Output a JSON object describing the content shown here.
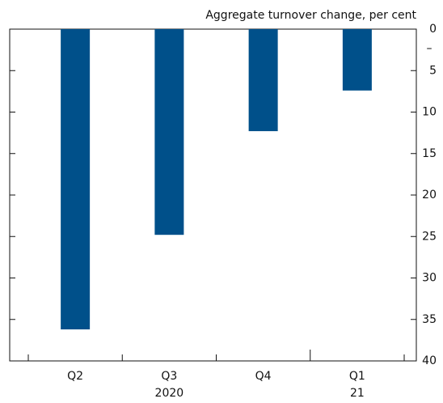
{
  "chart_data": {
    "type": "bar",
    "axis_label": "Aggregate turnover change, per cent",
    "sign_label": "–",
    "categories": [
      "Q2",
      "Q3",
      "Q4",
      "Q1"
    ],
    "groups": [
      {
        "label": "2020",
        "categories": [
          0,
          1,
          2
        ]
      },
      {
        "label": "21",
        "categories": [
          3
        ]
      }
    ],
    "values": [
      36.2,
      24.8,
      12.3,
      7.4
    ],
    "color": "#00508a",
    "ylim": [
      0,
      40
    ],
    "yticks": [
      0,
      5,
      10,
      15,
      20,
      25,
      30,
      35,
      40
    ],
    "y_inverted": true
  }
}
